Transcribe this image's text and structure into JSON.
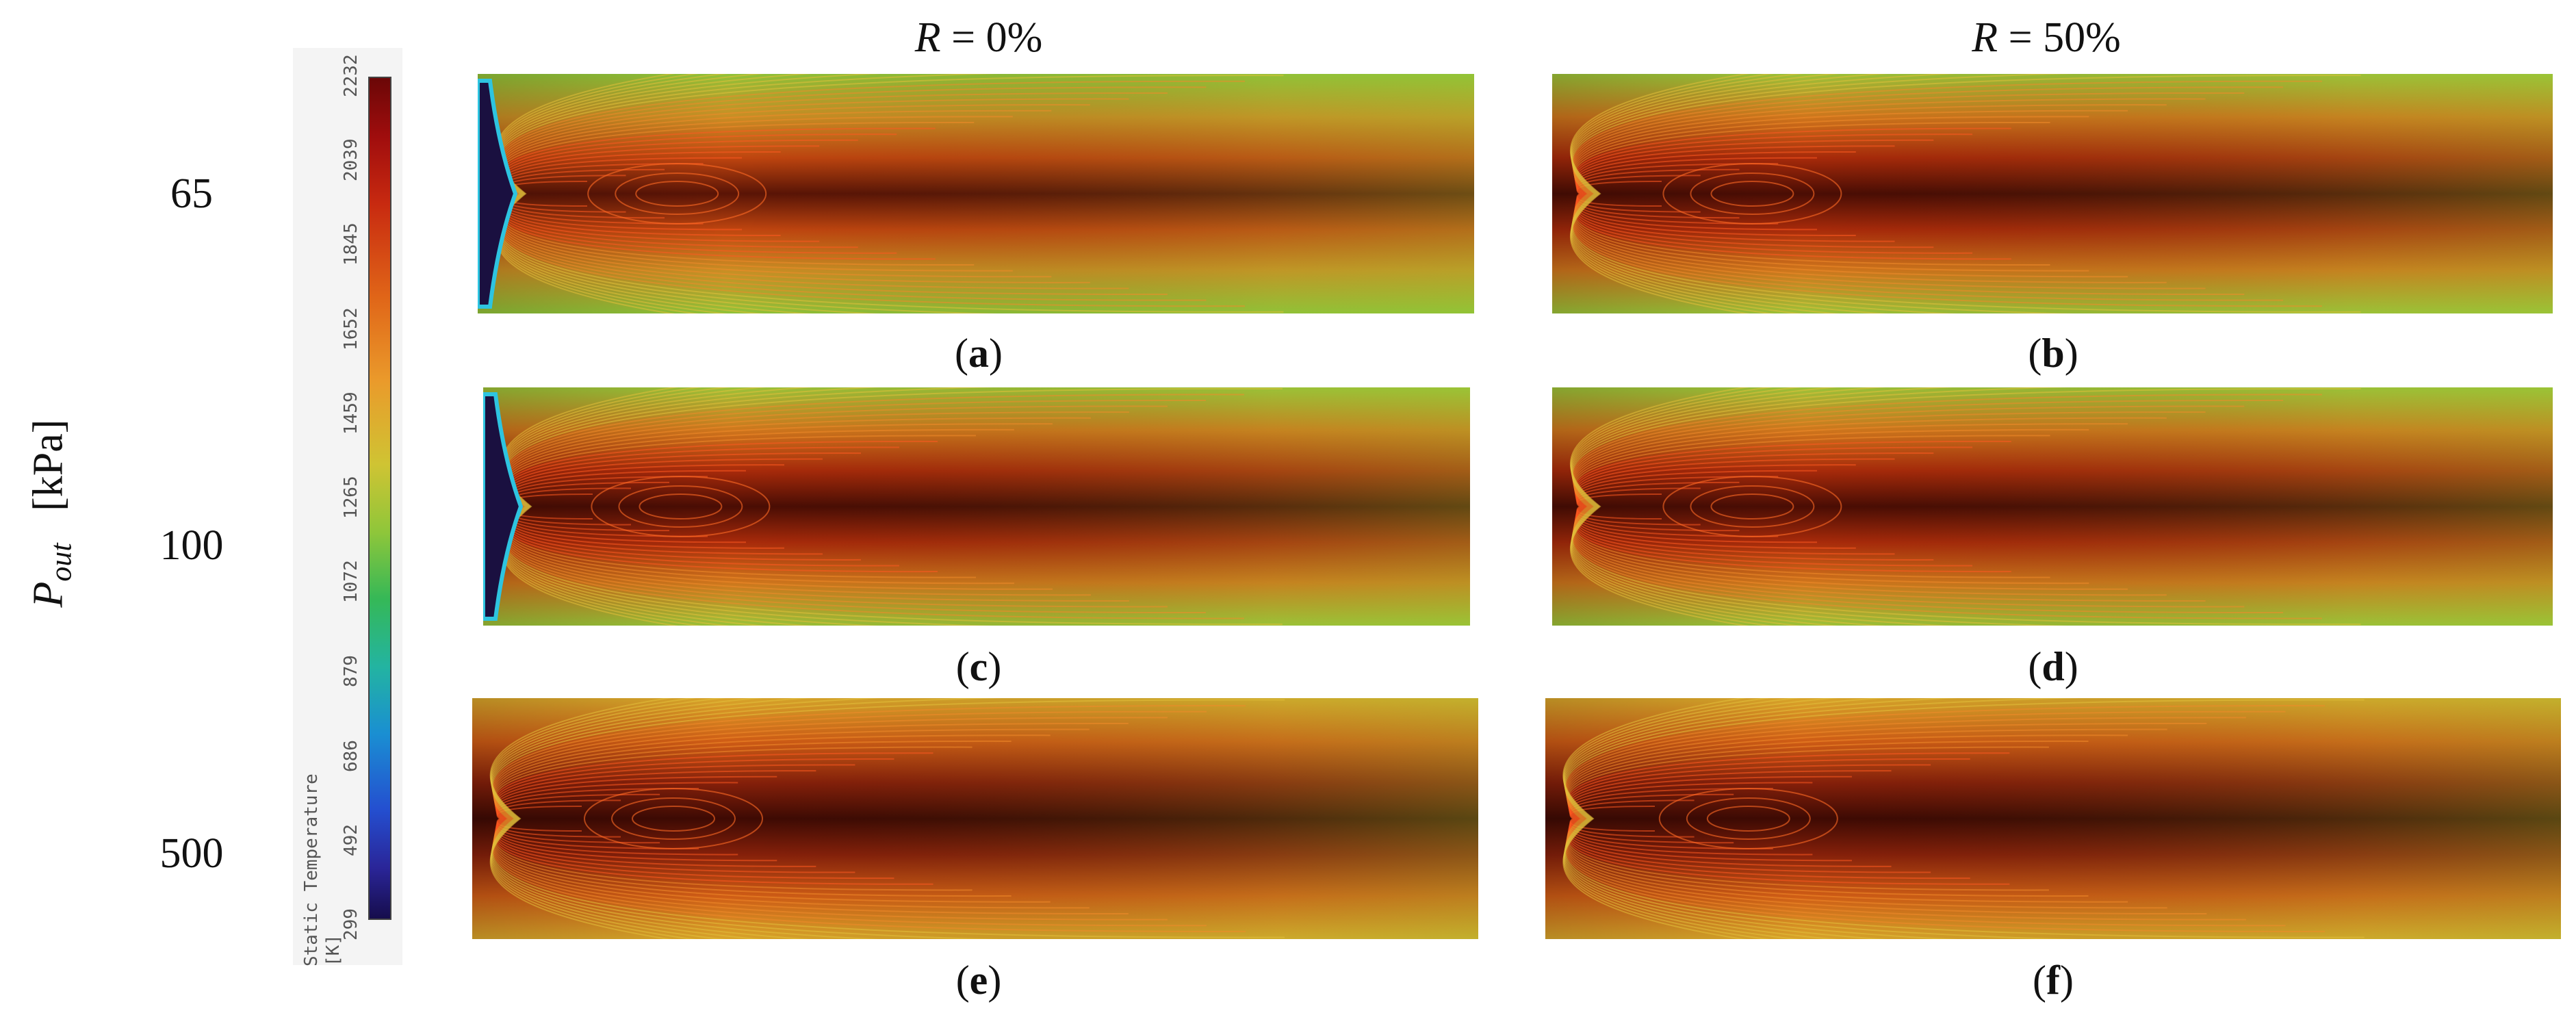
{
  "columns": [
    {
      "var": "R",
      "value": " = 0%"
    },
    {
      "var": "R",
      "value": " = 50%"
    }
  ],
  "y_axis": {
    "var": "P",
    "sub": "out",
    "unit": "[kPa]"
  },
  "rows": [
    {
      "label": "65"
    },
    {
      "label": "100"
    },
    {
      "label": "500"
    }
  ],
  "panels": [
    {
      "id": "a",
      "caption": "a",
      "row": 0,
      "col": 0,
      "cold_inlet": true,
      "core": "mid"
    },
    {
      "id": "b",
      "caption": "b",
      "row": 0,
      "col": 1,
      "cold_inlet": false,
      "core": "hot"
    },
    {
      "id": "c",
      "caption": "c",
      "row": 1,
      "col": 0,
      "cold_inlet": true,
      "core": "hot"
    },
    {
      "id": "d",
      "caption": "d",
      "row": 1,
      "col": 1,
      "cold_inlet": false,
      "core": "hot"
    },
    {
      "id": "e",
      "caption": "e",
      "row": 2,
      "col": 0,
      "cold_inlet": false,
      "core": "veryhot"
    },
    {
      "id": "f",
      "caption": "f",
      "row": 2,
      "col": 1,
      "cold_inlet": false,
      "core": "veryhot"
    }
  ],
  "colorbar": {
    "title_line1": "Static Temperature",
    "title_line2": "[K]",
    "ticks": [
      "2232",
      "2039",
      "1845",
      "1652",
      "1459",
      "1265",
      "1072",
      "879",
      "686",
      "492",
      "299"
    ],
    "colors": [
      "#6b0707",
      "#c82a10",
      "#ea9a2b",
      "#8fc63a",
      "#23b4a1",
      "#1a8fd2",
      "#160d4c"
    ]
  }
}
